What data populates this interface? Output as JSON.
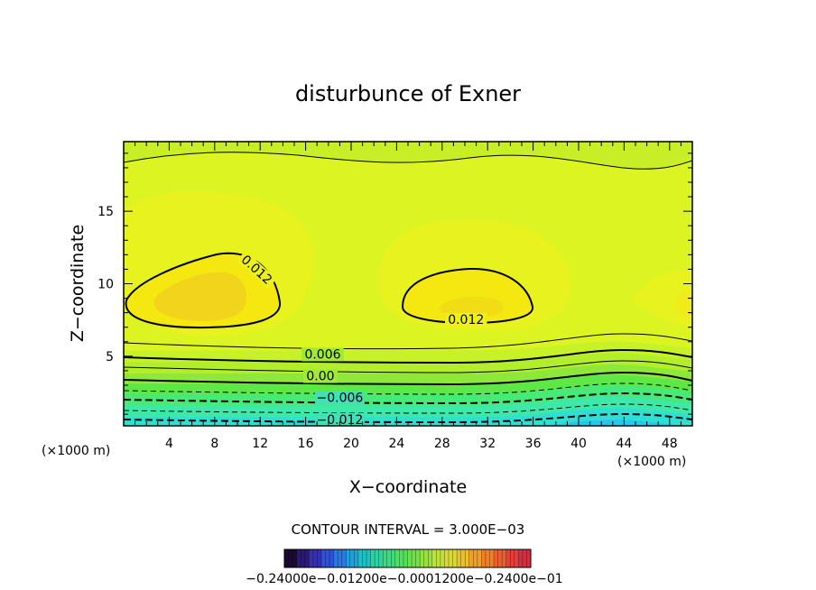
{
  "chart_data": {
    "type": "heatmap",
    "title": "disturbunce of Exner",
    "xlabel": "X−coordinate",
    "ylabel": "Z−coordinate",
    "x_unit": "(×1000 m)",
    "y_unit": "(×1000 m)",
    "xlim": [
      0,
      50
    ],
    "ylim": [
      0.2,
      19.8
    ],
    "x_ticks": [
      4,
      8,
      12,
      16,
      20,
      24,
      28,
      32,
      36,
      40,
      44,
      48
    ],
    "y_ticks": [
      5,
      10,
      15
    ],
    "contour_interval_text": "CONTOUR INTERVAL = 3.000E−03",
    "contour_labels": [
      {
        "text": "0.012",
        "x": 11.5,
        "z": 10.8,
        "angle": 42
      },
      {
        "text": "0.012",
        "x": 30.1,
        "z": 7.3,
        "angle": 0
      },
      {
        "text": "0.006",
        "x": 17.5,
        "z": 4.9,
        "angle": 0
      },
      {
        "text": "0.00",
        "x": 17.3,
        "z": 3.4,
        "angle": 0
      },
      {
        "text": "−0.006",
        "x": 19.0,
        "z": 1.9,
        "angle": 0
      },
      {
        "text": "−0.012",
        "x": 19.0,
        "z": 0.4,
        "angle": 0
      }
    ],
    "bands_bottom_to_top": [
      {
        "z": 0.0,
        "color": "#22c8f0"
      },
      {
        "z": 0.8,
        "color": "#2ee0d4"
      },
      {
        "z": 1.6,
        "color": "#3de8a8"
      },
      {
        "z": 2.4,
        "color": "#46ea74"
      },
      {
        "z": 3.1,
        "color": "#5ee846"
      },
      {
        "z": 3.8,
        "color": "#8ee83a"
      },
      {
        "z": 4.6,
        "color": "#b2ee2a"
      },
      {
        "z": 5.4,
        "color": "#c8f228"
      },
      {
        "z": 6.2,
        "color": "#dcf422"
      }
    ],
    "colorbar": {
      "labels_text": "−0.24000e−0.01200e−0.0001200e−0.2400e−01",
      "colors": [
        "#1a0a30",
        "#2a1a70",
        "#3530b0",
        "#3050d8",
        "#2878e0",
        "#20a0d8",
        "#20c0c0",
        "#30d0a0",
        "#40d880",
        "#50e060",
        "#70e048",
        "#98e040",
        "#c0e040",
        "#d8d838",
        "#e8c030",
        "#f0a028",
        "#f08028",
        "#e86030",
        "#e04038",
        "#d03040"
      ]
    }
  }
}
